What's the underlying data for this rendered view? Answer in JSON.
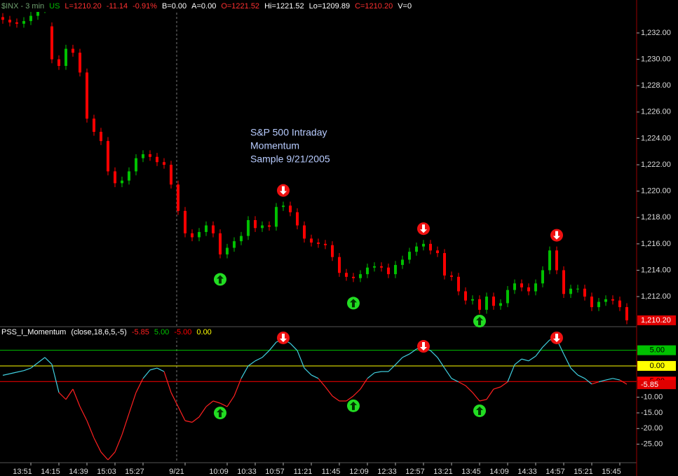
{
  "chart_data": [
    {
      "type": "candlestick",
      "header": [
        {
          "text": "$INX - 3 min",
          "color": "#6fa06f"
        },
        {
          "text": "US",
          "color": "#00c000"
        },
        {
          "text": "L=1210.20",
          "color": "#ff3030"
        },
        {
          "text": "-11.14",
          "color": "#ff3030"
        },
        {
          "text": "-0.91%",
          "color": "#ff3030"
        },
        {
          "text": "B=0.00",
          "color": "#ffffff"
        },
        {
          "text": "A=0.00",
          "color": "#ffffff"
        },
        {
          "text": "O=1221.52",
          "color": "#ff3030"
        },
        {
          "text": "Hi=1221.52",
          "color": "#ffffff"
        },
        {
          "text": "Lo=1209.89",
          "color": "#ffffff"
        },
        {
          "text": "C=1210.20",
          "color": "#ff3030"
        },
        {
          "text": "V=0",
          "color": "#ffffff"
        }
      ],
      "annotation": [
        "S&P 500 Intraday",
        "Momentum",
        "Sample 9/21/2005"
      ],
      "up_color": "#00c000",
      "down_color": "#ff0000",
      "categories": [
        null,
        null,
        null,
        null,
        "13:51",
        null,
        null,
        null,
        "14:15",
        null,
        null,
        null,
        "14:39",
        null,
        null,
        null,
        "15:03",
        null,
        null,
        null,
        "15:27",
        null,
        null,
        null,
        null,
        null,
        "9/21",
        null,
        null,
        null,
        null,
        null,
        "10:09",
        null,
        null,
        null,
        "10:33",
        null,
        null,
        null,
        "10:57",
        null,
        null,
        null,
        "11:21",
        null,
        null,
        null,
        "11:45",
        null,
        null,
        null,
        "12:09",
        null,
        null,
        null,
        "12:33",
        null,
        null,
        null,
        "12:57",
        null,
        null,
        null,
        "13:21",
        null,
        null,
        null,
        "13:45",
        null,
        null,
        null,
        "14:09",
        null,
        null,
        null,
        "14:33",
        null,
        null,
        null,
        "14:57",
        null,
        null,
        null,
        "15:21",
        null,
        null,
        null,
        "15:45",
        null
      ],
      "candles": [
        [
          1233.2,
          1233.5,
          1232.7,
          1233.0
        ],
        [
          1233.0,
          1233.3,
          1232.5,
          1232.8
        ],
        [
          1232.8,
          1233.1,
          1232.4,
          1232.7
        ],
        [
          1232.7,
          1233.2,
          1232.4,
          1232.9
        ],
        [
          1232.9,
          1233.6,
          1232.6,
          1233.3
        ],
        [
          1233.3,
          1234.1,
          1233.0,
          1233.8
        ],
        [
          1233.8,
          1234.6,
          1233.5,
          1234.3
        ],
        [
          1232.5,
          1232.8,
          1229.7,
          1230.0
        ],
        [
          1230.0,
          1230.3,
          1229.2,
          1229.5
        ],
        [
          1229.5,
          1231.1,
          1229.2,
          1230.8
        ],
        [
          1230.8,
          1231.1,
          1230.2,
          1230.5
        ],
        [
          1230.5,
          1230.8,
          1228.7,
          1229.0
        ],
        [
          1229.0,
          1229.3,
          1225.2,
          1225.5
        ],
        [
          1225.5,
          1225.8,
          1224.2,
          1224.5
        ],
        [
          1224.5,
          1224.8,
          1223.5,
          1223.8
        ],
        [
          1223.8,
          1224.1,
          1221.2,
          1221.5
        ],
        [
          1221.5,
          1221.8,
          1220.3,
          1220.6
        ],
        [
          1220.6,
          1221.1,
          1220.3,
          1220.8
        ],
        [
          1220.8,
          1221.8,
          1220.5,
          1221.5
        ],
        [
          1221.5,
          1222.8,
          1221.2,
          1222.5
        ],
        [
          1222.5,
          1223.1,
          1222.2,
          1222.8
        ],
        [
          1222.8,
          1223.1,
          1222.3,
          1222.6
        ],
        [
          1222.6,
          1222.9,
          1221.9,
          1222.2
        ],
        [
          1222.2,
          1222.5,
          1221.7,
          1222.0
        ],
        [
          1222.0,
          1222.3,
          1220.2,
          1220.5
        ],
        [
          1220.5,
          1220.8,
          1218.2,
          1218.5
        ],
        [
          1218.5,
          1218.8,
          1216.5,
          1216.8
        ],
        [
          1216.8,
          1217.1,
          1216.2,
          1216.5
        ],
        [
          1216.5,
          1217.2,
          1216.2,
          1216.9
        ],
        [
          1216.9,
          1217.7,
          1216.6,
          1217.4
        ],
        [
          1217.4,
          1217.7,
          1216.5,
          1216.8
        ],
        [
          1216.8,
          1217.1,
          1214.9,
          1215.2
        ],
        [
          1215.2,
          1216.0,
          1214.9,
          1215.7
        ],
        [
          1215.7,
          1216.5,
          1215.4,
          1216.2
        ],
        [
          1216.2,
          1216.9,
          1215.9,
          1216.6
        ],
        [
          1216.6,
          1218.1,
          1216.3,
          1217.8
        ],
        [
          1217.8,
          1218.1,
          1216.9,
          1217.2
        ],
        [
          1217.2,
          1217.7,
          1216.9,
          1217.4
        ],
        [
          1217.4,
          1217.7,
          1217.0,
          1217.3
        ],
        [
          1217.3,
          1219.1,
          1217.0,
          1218.8
        ],
        [
          1218.8,
          1219.2,
          1218.5,
          1218.9
        ],
        [
          1218.9,
          1219.2,
          1218.1,
          1218.4
        ],
        [
          1218.4,
          1218.7,
          1217.1,
          1217.4
        ],
        [
          1217.4,
          1217.7,
          1216.1,
          1216.4
        ],
        [
          1216.4,
          1216.7,
          1215.8,
          1216.1
        ],
        [
          1216.1,
          1216.4,
          1215.7,
          1216.0
        ],
        [
          1216.0,
          1216.3,
          1215.6,
          1215.9
        ],
        [
          1215.9,
          1216.2,
          1214.7,
          1215.0
        ],
        [
          1215.0,
          1215.3,
          1213.5,
          1213.8
        ],
        [
          1213.8,
          1214.1,
          1213.2,
          1213.5
        ],
        [
          1213.5,
          1213.8,
          1213.1,
          1213.4
        ],
        [
          1213.4,
          1214.0,
          1213.1,
          1213.7
        ],
        [
          1213.7,
          1214.5,
          1213.4,
          1214.2
        ],
        [
          1214.2,
          1214.6,
          1213.9,
          1214.3
        ],
        [
          1214.3,
          1214.6,
          1213.9,
          1214.2
        ],
        [
          1214.2,
          1214.5,
          1213.4,
          1213.7
        ],
        [
          1213.7,
          1214.7,
          1213.4,
          1214.4
        ],
        [
          1214.4,
          1215.1,
          1214.1,
          1214.8
        ],
        [
          1214.8,
          1215.7,
          1214.5,
          1215.4
        ],
        [
          1215.4,
          1216.1,
          1215.1,
          1215.8
        ],
        [
          1215.8,
          1216.3,
          1215.5,
          1216.0
        ],
        [
          1216.0,
          1216.3,
          1215.2,
          1215.5
        ],
        [
          1215.5,
          1215.8,
          1215.0,
          1215.3
        ],
        [
          1215.3,
          1215.6,
          1213.3,
          1213.6
        ],
        [
          1213.6,
          1213.9,
          1213.2,
          1213.5
        ],
        [
          1213.5,
          1213.8,
          1212.1,
          1212.4
        ],
        [
          1212.4,
          1212.7,
          1211.4,
          1211.7
        ],
        [
          1211.7,
          1212.1,
          1211.4,
          1211.8
        ],
        [
          1211.8,
          1212.1,
          1210.7,
          1211.0
        ],
        [
          1211.0,
          1212.3,
          1210.7,
          1212.0
        ],
        [
          1212.0,
          1212.3,
          1211.0,
          1211.3
        ],
        [
          1211.3,
          1211.8,
          1211.0,
          1211.5
        ],
        [
          1211.5,
          1212.8,
          1211.2,
          1212.5
        ],
        [
          1212.5,
          1213.3,
          1212.2,
          1213.0
        ],
        [
          1213.0,
          1213.3,
          1212.4,
          1212.7
        ],
        [
          1212.7,
          1213.0,
          1212.1,
          1212.4
        ],
        [
          1212.4,
          1213.3,
          1212.1,
          1213.0
        ],
        [
          1213.0,
          1214.3,
          1212.7,
          1214.0
        ],
        [
          1214.0,
          1215.8,
          1213.7,
          1215.5
        ],
        [
          1215.5,
          1215.8,
          1213.7,
          1214.0
        ],
        [
          1214.0,
          1214.3,
          1211.9,
          1212.2
        ],
        [
          1212.2,
          1212.9,
          1211.9,
          1212.6
        ],
        [
          1212.6,
          1212.9,
          1212.3,
          1212.6
        ],
        [
          1212.6,
          1212.9,
          1211.7,
          1212.0
        ],
        [
          1212.0,
          1212.3,
          1210.9,
          1211.2
        ],
        [
          1211.2,
          1211.9,
          1210.9,
          1211.6
        ],
        [
          1211.6,
          1212.1,
          1211.3,
          1211.8
        ],
        [
          1211.8,
          1212.1,
          1211.4,
          1211.7
        ],
        [
          1211.7,
          1212.0,
          1210.9,
          1211.2
        ],
        [
          1211.2,
          1211.5,
          1209.9,
          1210.2
        ]
      ],
      "buy": [
        31,
        50,
        68
      ],
      "sell": [
        40,
        60,
        79
      ],
      "last_price": {
        "value": 1210.2,
        "label": "1,210.20"
      },
      "ylim": [
        1209.77,
        1234.5
      ],
      "yticks": [
        {
          "value": 1212,
          "label": "1,212.00"
        },
        {
          "value": 1214,
          "label": "1,214.00"
        },
        {
          "value": 1216,
          "label": "1,216.00"
        },
        {
          "value": 1218,
          "label": "1,218.00"
        },
        {
          "value": 1220,
          "label": "1,220.00"
        },
        {
          "value": 1222,
          "label": "1,222.00"
        },
        {
          "value": 1224,
          "label": "1,224.00"
        },
        {
          "value": 1226,
          "label": "1,226.00"
        },
        {
          "value": 1228,
          "label": "1,228.00"
        },
        {
          "value": 1230,
          "label": "1,230.00"
        },
        {
          "value": 1232,
          "label": "1,232.00"
        }
      ]
    },
    {
      "type": "line",
      "name": "PSS_I_Momentum",
      "params": "(close,18,6,5,-5)",
      "above_color": "#40d0e0",
      "below_color": "#ff2020",
      "values": [
        -3,
        -2.5,
        -2,
        -1.5,
        -0.7,
        1,
        2.7,
        0.5,
        -8.5,
        -10.7,
        -7.4,
        -13,
        -17.5,
        -23,
        -27.5,
        -30,
        -27.5,
        -22,
        -15.2,
        -8.5,
        -4,
        -1.3,
        -0.7,
        -1.8,
        -8.5,
        -13,
        -17.5,
        -18,
        -16.3,
        -13,
        -11.2,
        -11.9,
        -13,
        -9.6,
        -4,
        0,
        1.6,
        2.7,
        4.9,
        7.6,
        8.5,
        7.2,
        4.9,
        -0.7,
        -2.9,
        -4,
        -6.7,
        -9.6,
        -11.2,
        -11.2,
        -9.6,
        -7.4,
        -4,
        -2.2,
        -1.8,
        -1.8,
        0.4,
        2.7,
        3.8,
        5.4,
        5.8,
        4.9,
        2.7,
        -0.7,
        -4,
        -5.1,
        -6.3,
        -8.5,
        -11.2,
        -10.7,
        -7.4,
        -6.7,
        -5.1,
        0.4,
        2.2,
        1.6,
        3.1,
        6,
        8.3,
        8.5,
        3.8,
        -0.7,
        -2.9,
        -4,
        -5.8,
        -5.1,
        -4.5,
        -4,
        -4.5,
        -5.85
      ],
      "levels": [
        {
          "value": 5,
          "label": "5.00",
          "color": "#00c000"
        },
        {
          "value": -5,
          "label": "-5.00",
          "color": "#ff0000"
        },
        {
          "value": 0,
          "label": "0.00",
          "color": "#ffff00"
        }
      ],
      "ylim": [
        -30.9,
        12.3
      ],
      "yticks": [
        {
          "value": -10,
          "label": "-10.00"
        },
        {
          "value": -15,
          "label": "-15.00"
        },
        {
          "value": -20,
          "label": "-20.00"
        },
        {
          "value": -25,
          "label": "-25.00"
        }
      ]
    }
  ]
}
